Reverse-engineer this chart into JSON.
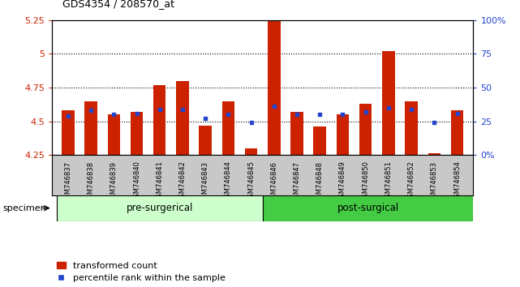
{
  "title": "GDS4354 / 208570_at",
  "samples": [
    "GSM746837",
    "GSM746838",
    "GSM746839",
    "GSM746840",
    "GSM746841",
    "GSM746842",
    "GSM746843",
    "GSM746844",
    "GSM746845",
    "GSM746846",
    "GSM746847",
    "GSM746848",
    "GSM746849",
    "GSM746850",
    "GSM746851",
    "GSM746852",
    "GSM746853",
    "GSM746854"
  ],
  "red_values": [
    4.58,
    4.65,
    4.55,
    4.57,
    4.77,
    4.8,
    4.47,
    4.65,
    4.3,
    5.37,
    4.57,
    4.46,
    4.55,
    4.63,
    5.02,
    4.65,
    4.26,
    4.58
  ],
  "blue_values": [
    4.54,
    4.58,
    4.55,
    4.56,
    4.59,
    4.59,
    4.52,
    4.55,
    4.49,
    4.61,
    4.55,
    4.55,
    4.55,
    4.57,
    4.6,
    4.59,
    4.49,
    4.56
  ],
  "ymin": 4.25,
  "ymax": 5.25,
  "yticks": [
    4.25,
    4.5,
    4.75,
    5.0,
    5.25
  ],
  "ytick_labels": [
    "4.25",
    "4.5",
    "4.75",
    "5",
    "5.25"
  ],
  "right_yticks_pct": [
    0,
    25,
    50,
    75,
    100
  ],
  "right_yticklabels": [
    "0%",
    "25",
    "50",
    "75",
    "100%"
  ],
  "grid_values": [
    4.5,
    4.75,
    5.0
  ],
  "bar_color": "#cc2200",
  "blue_color": "#2244cc",
  "pre_surgical_count": 9,
  "pre_color": "#ccffcc",
  "post_color": "#44cc44",
  "label_bg_color": "#c8c8c8",
  "pre_label": "pre-surgerical",
  "post_label": "post-surgical",
  "legend_red": "transformed count",
  "legend_blue": "percentile rank within the sample"
}
